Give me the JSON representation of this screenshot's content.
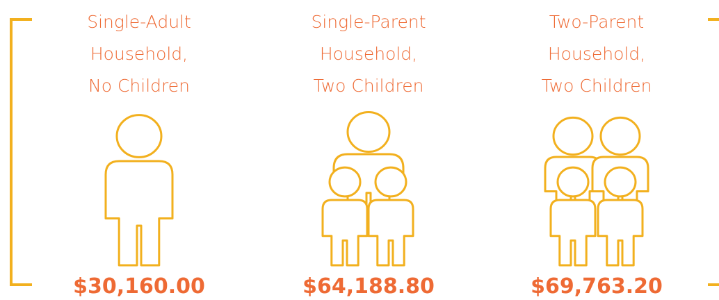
{
  "columns": [
    {
      "label": [
        "Single-Adult",
        "Household,",
        "No Children"
      ],
      "amount": "$30,160.00"
    },
    {
      "label": [
        "Single-Parent",
        "Household,",
        "Two Children"
      ],
      "amount": "$64,188.80"
    },
    {
      "label": [
        "Two-Parent",
        "Household,",
        "Two Children"
      ],
      "amount": "$69,763.20"
    }
  ]
}
